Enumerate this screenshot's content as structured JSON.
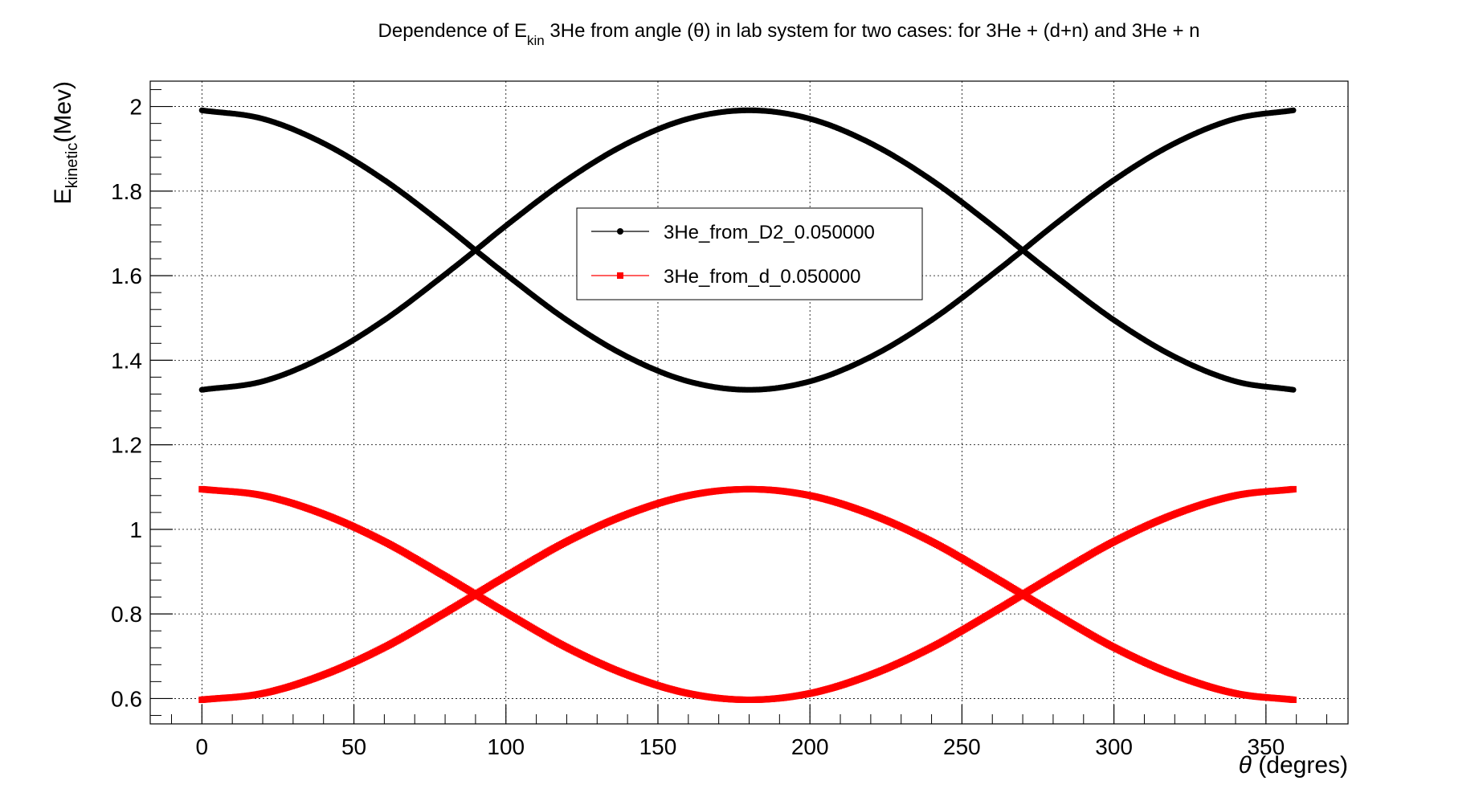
{
  "chart_data": {
    "type": "line",
    "title": {
      "pre": "Dependence of E",
      "sub": "kin",
      "post": " 3He from angle (θ) in lab system for two cases: for 3He + (d+n) and 3He + n"
    },
    "xlabel": {
      "symbol": "θ",
      "rest": " (degres)"
    },
    "ylabel": {
      "base": "E",
      "sub": "kinetic",
      "rest": "(Mev)"
    },
    "xlim": [
      -17,
      377
    ],
    "ylim": [
      0.54,
      2.06
    ],
    "xticks": [
      "0",
      "50",
      "100",
      "150",
      "200",
      "250",
      "300",
      "350"
    ],
    "yticks": [
      "0.6",
      "0.8",
      "1",
      "1.2",
      "1.4",
      "1.6",
      "1.8",
      "2"
    ],
    "grid": true,
    "legend_position": "upper-center",
    "series": [
      {
        "name": "3He_from_D2_0.050000",
        "color": "#000000",
        "marker": "circle",
        "x": [
          0,
          20,
          40,
          60,
          80,
          90,
          100,
          120,
          140,
          160,
          180,
          200,
          220,
          240,
          260,
          270,
          280,
          300,
          320,
          340,
          359
        ],
        "branches": [
          [
            1.991,
            1.971,
            1.913,
            1.826,
            1.718,
            1.66,
            1.603,
            1.495,
            1.408,
            1.35,
            1.33,
            1.35,
            1.408,
            1.495,
            1.603,
            1.66,
            1.718,
            1.826,
            1.913,
            1.971,
            1.991
          ],
          [
            1.33,
            1.35,
            1.408,
            1.495,
            1.603,
            1.66,
            1.718,
            1.826,
            1.913,
            1.971,
            1.991,
            1.971,
            1.913,
            1.826,
            1.718,
            1.66,
            1.603,
            1.495,
            1.408,
            1.35,
            1.33
          ]
        ]
      },
      {
        "name": "3He_from_d_0.050000",
        "color": "#ff0000",
        "marker": "square",
        "x": [
          0,
          20,
          40,
          60,
          80,
          90,
          100,
          120,
          140,
          160,
          180,
          200,
          220,
          240,
          260,
          270,
          280,
          300,
          320,
          340,
          359
        ],
        "branches": [
          [
            1.095,
            1.08,
            1.036,
            0.971,
            0.889,
            0.846,
            0.803,
            0.721,
            0.656,
            0.612,
            0.597,
            0.612,
            0.656,
            0.721,
            0.803,
            0.846,
            0.889,
            0.971,
            1.036,
            1.08,
            1.095
          ],
          [
            0.597,
            0.612,
            0.656,
            0.721,
            0.803,
            0.846,
            0.889,
            0.971,
            1.036,
            1.08,
            1.095,
            1.08,
            1.036,
            0.971,
            0.889,
            0.846,
            0.803,
            0.721,
            0.656,
            0.612,
            0.597
          ]
        ]
      }
    ]
  }
}
